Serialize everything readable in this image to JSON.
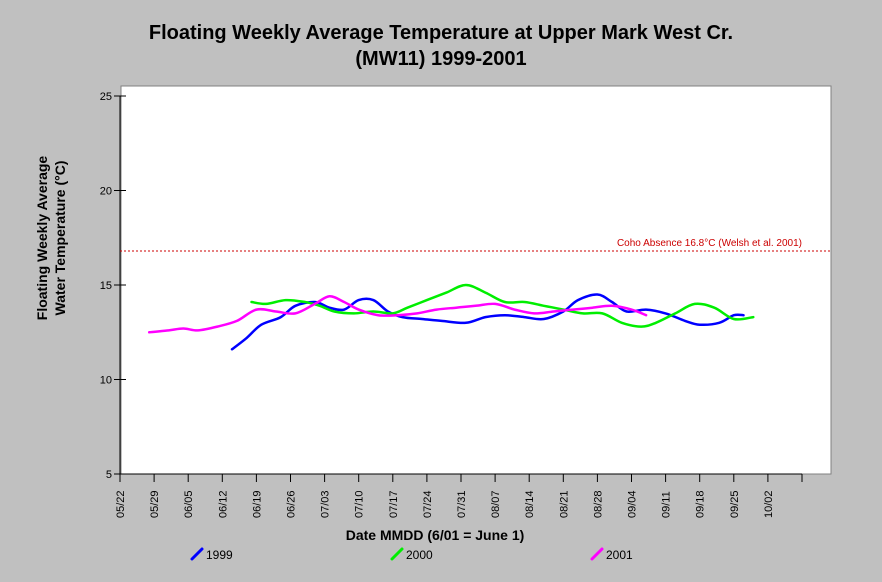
{
  "chart_data": {
    "type": "line",
    "title_line1": "Floating Weekly Average Temperature at Upper Mark West Cr.",
    "title_line2": "(MW11) 1999-2001",
    "xlabel": "Date MMDD (6/01 = June 1)",
    "ylabel_line1": "Floating Weekly Average",
    "ylabel_line2": "Water Temperature (°C)",
    "ylim": [
      5,
      25
    ],
    "yticks": [
      5,
      10,
      15,
      20,
      25
    ],
    "x_tick_labels": [
      "05/22",
      "05/29",
      "06/05",
      "06/12",
      "06/19",
      "06/26",
      "07/03",
      "07/10",
      "07/17",
      "07/24",
      "07/31",
      "08/07",
      "08/14",
      "08/21",
      "08/28",
      "09/04",
      "09/11",
      "09/18",
      "09/25",
      "10/02"
    ],
    "x_start_date": "05/22",
    "reference_line": {
      "value": 16.8,
      "label": "Coho Absence 16.8°C (Welsh et al. 2001)",
      "color": "#cc0000"
    },
    "series": [
      {
        "name": "1999",
        "color": "#0000ff",
        "x": [
          "06/14",
          "06/17",
          "06/20",
          "06/24",
          "06/27",
          "07/01",
          "07/04",
          "07/07",
          "07/10",
          "07/13",
          "07/16",
          "07/19",
          "07/23",
          "07/27",
          "08/01",
          "08/05",
          "08/09",
          "08/13",
          "08/17",
          "08/21",
          "08/24",
          "08/28",
          "08/31",
          "09/03",
          "09/07",
          "09/11",
          "09/15",
          "09/18",
          "09/22",
          "09/25",
          "09/27"
        ],
        "values": [
          11.6,
          12.2,
          12.9,
          13.3,
          13.9,
          14.1,
          13.8,
          13.7,
          14.2,
          14.2,
          13.6,
          13.3,
          13.2,
          13.1,
          13.0,
          13.3,
          13.4,
          13.3,
          13.2,
          13.6,
          14.2,
          14.5,
          14.1,
          13.6,
          13.7,
          13.5,
          13.1,
          12.9,
          13.0,
          13.4,
          13.4
        ]
      },
      {
        "name": "2000",
        "color": "#00ee00",
        "x": [
          "06/18",
          "06/21",
          "06/25",
          "06/29",
          "07/02",
          "07/05",
          "07/09",
          "07/13",
          "07/17",
          "07/20",
          "07/24",
          "07/28",
          "08/01",
          "08/05",
          "08/09",
          "08/13",
          "08/17",
          "08/21",
          "08/25",
          "08/29",
          "09/02",
          "09/06",
          "09/09",
          "09/13",
          "09/17",
          "09/21",
          "09/25",
          "09/29"
        ],
        "values": [
          14.1,
          14.0,
          14.2,
          14.1,
          13.9,
          13.6,
          13.5,
          13.6,
          13.5,
          13.8,
          14.2,
          14.6,
          15.0,
          14.6,
          14.1,
          14.1,
          13.9,
          13.7,
          13.5,
          13.5,
          13.0,
          12.8,
          13.0,
          13.5,
          14.0,
          13.8,
          13.2,
          13.3
        ]
      },
      {
        "name": "2001",
        "color": "#ff00ff",
        "x": [
          "05/28",
          "06/01",
          "06/04",
          "06/07",
          "06/11",
          "06/15",
          "06/19",
          "06/23",
          "06/27",
          "07/01",
          "07/04",
          "07/07",
          "07/10",
          "07/14",
          "07/18",
          "07/22",
          "07/26",
          "07/30",
          "08/03",
          "08/07",
          "08/11",
          "08/15",
          "08/19",
          "08/23",
          "08/27",
          "08/31",
          "09/04",
          "09/07"
        ],
        "values": [
          12.5,
          12.6,
          12.7,
          12.6,
          12.8,
          13.1,
          13.7,
          13.6,
          13.5,
          14.0,
          14.4,
          14.1,
          13.7,
          13.4,
          13.4,
          13.5,
          13.7,
          13.8,
          13.9,
          14.0,
          13.7,
          13.5,
          13.6,
          13.7,
          13.8,
          13.9,
          13.7,
          13.4
        ]
      }
    ],
    "legend_position": "bottom"
  }
}
